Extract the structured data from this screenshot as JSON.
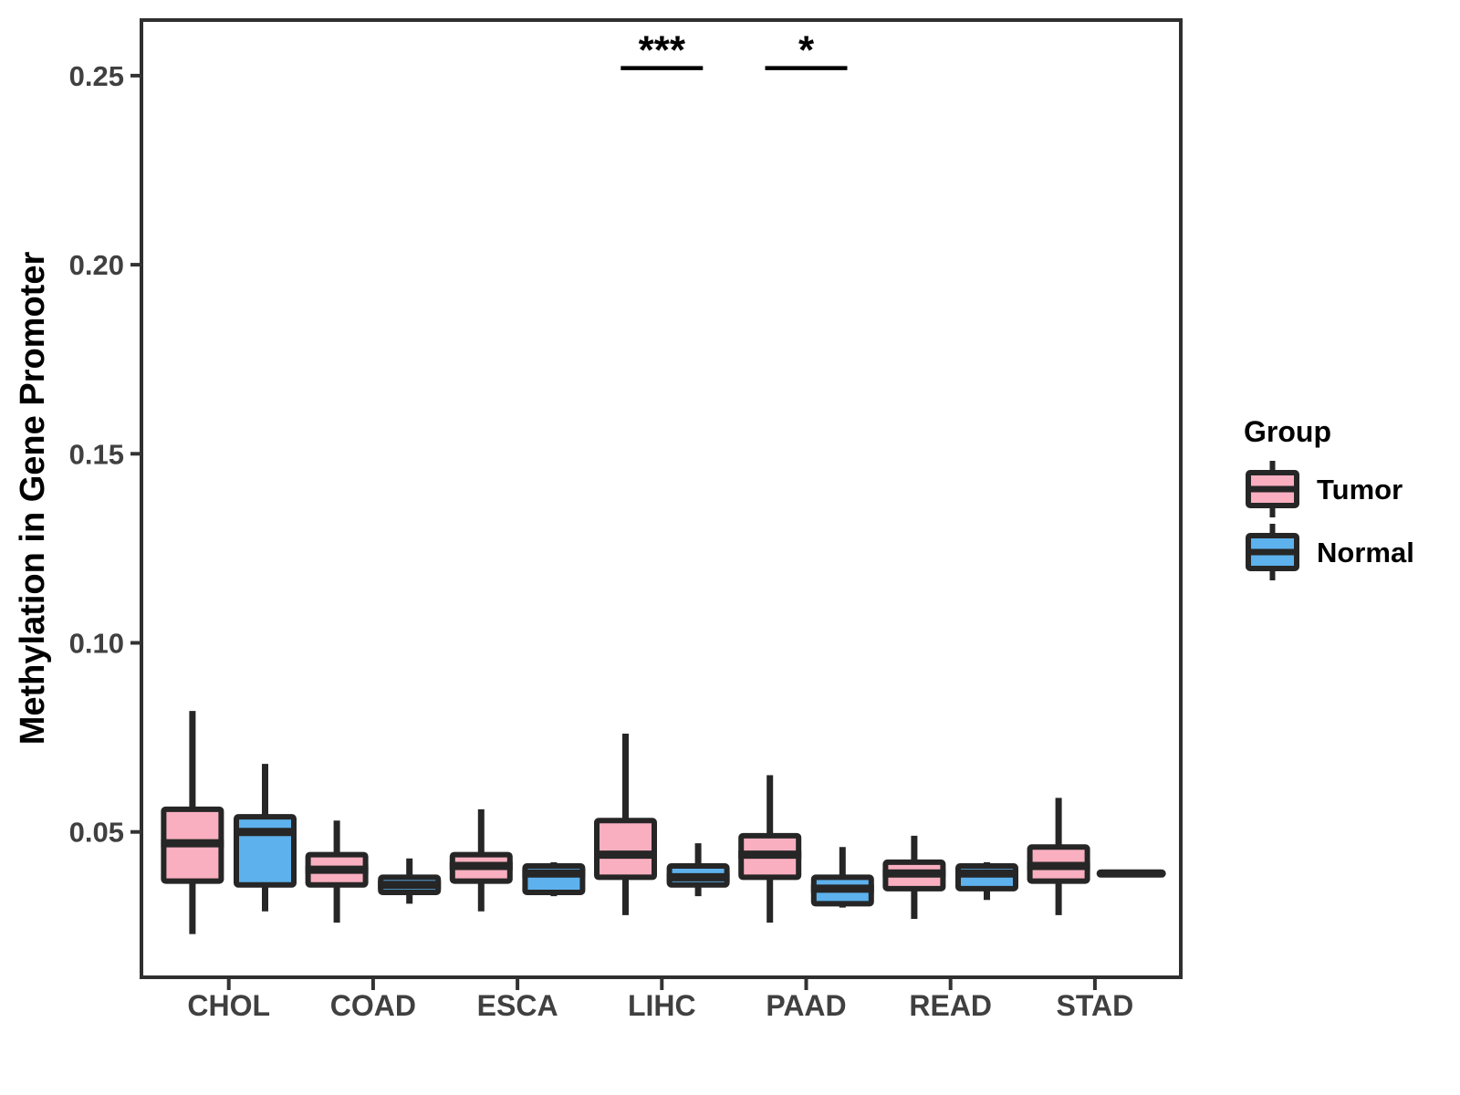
{
  "chart_data": {
    "type": "boxplot",
    "title": "",
    "xlabel": "",
    "ylabel": "Methylation in Gene Promoter",
    "categories": [
      "CHOL",
      "COAD",
      "ESCA",
      "LIHC",
      "PAAD",
      "READ",
      "STAD"
    ],
    "groups": [
      "Tumor",
      "Normal"
    ],
    "group_colors": {
      "Tumor": "#F9AFC0",
      "Normal": "#5DB1EC"
    },
    "stroke_color": "#262626",
    "ylim": [
      0.012,
      0.265
    ],
    "yticks": [
      {
        "value": 0.05,
        "label": "0.05"
      },
      {
        "value": 0.1,
        "label": "0.10"
      },
      {
        "value": 0.15,
        "label": "0.15"
      },
      {
        "value": 0.2,
        "label": "0.20"
      },
      {
        "value": 0.25,
        "label": "0.25"
      }
    ],
    "grid": false,
    "legend_position": "right",
    "legend": {
      "title": "Group"
    },
    "series": [
      {
        "name": "Tumor",
        "color": "#F9AFC0",
        "stats": [
          {
            "category": "CHOL",
            "low": 0.023,
            "q1": 0.037,
            "median": 0.047,
            "q3": 0.056,
            "high": 0.082
          },
          {
            "category": "COAD",
            "low": 0.026,
            "q1": 0.036,
            "median": 0.04,
            "q3": 0.044,
            "high": 0.053
          },
          {
            "category": "ESCA",
            "low": 0.029,
            "q1": 0.037,
            "median": 0.041,
            "q3": 0.044,
            "high": 0.056
          },
          {
            "category": "LIHC",
            "low": 0.028,
            "q1": 0.038,
            "median": 0.044,
            "q3": 0.053,
            "high": 0.076
          },
          {
            "category": "PAAD",
            "low": 0.026,
            "q1": 0.038,
            "median": 0.044,
            "q3": 0.049,
            "high": 0.065
          },
          {
            "category": "READ",
            "low": 0.027,
            "q1": 0.035,
            "median": 0.039,
            "q3": 0.042,
            "high": 0.049
          },
          {
            "category": "STAD",
            "low": 0.028,
            "q1": 0.037,
            "median": 0.041,
            "q3": 0.046,
            "high": 0.059
          }
        ]
      },
      {
        "name": "Normal",
        "color": "#5DB1EC",
        "stats": [
          {
            "category": "CHOL",
            "low": 0.029,
            "q1": 0.036,
            "median": 0.05,
            "q3": 0.054,
            "high": 0.068
          },
          {
            "category": "COAD",
            "low": 0.031,
            "q1": 0.034,
            "median": 0.036,
            "q3": 0.038,
            "high": 0.043
          },
          {
            "category": "ESCA",
            "low": 0.033,
            "q1": 0.034,
            "median": 0.039,
            "q3": 0.041,
            "high": 0.042
          },
          {
            "category": "LIHC",
            "low": 0.033,
            "q1": 0.036,
            "median": 0.038,
            "q3": 0.041,
            "high": 0.047
          },
          {
            "category": "PAAD",
            "low": 0.03,
            "q1": 0.031,
            "median": 0.035,
            "q3": 0.038,
            "high": 0.046
          },
          {
            "category": "READ",
            "low": 0.032,
            "q1": 0.035,
            "median": 0.039,
            "q3": 0.041,
            "high": 0.042
          },
          {
            "category": "STAD",
            "low": 0.039,
            "q1": 0.039,
            "median": 0.039,
            "q3": 0.039,
            "high": 0.039
          }
        ]
      }
    ],
    "annotations": [
      {
        "category": "LIHC",
        "label": "***",
        "y_value": 0.252
      },
      {
        "category": "PAAD",
        "label": "*",
        "y_value": 0.252
      }
    ]
  }
}
